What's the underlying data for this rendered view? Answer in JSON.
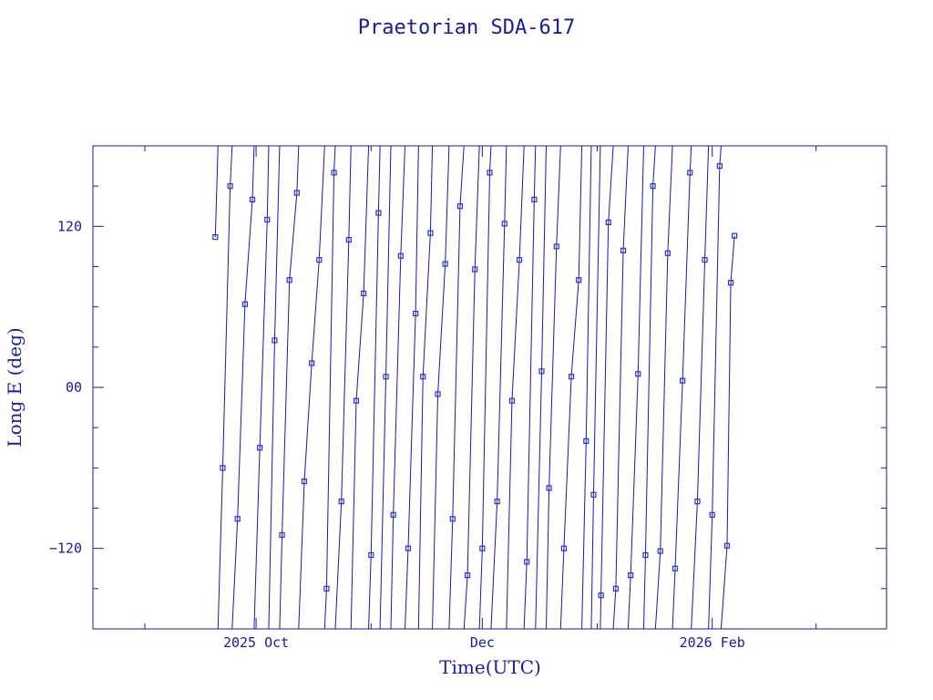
{
  "chart_data": {
    "type": "line",
    "title": "Praetorian SDA-617",
    "xlabel": "Time(UTC)",
    "ylabel": "Long E (deg)",
    "x_axis": {
      "scale": "time",
      "range": [
        "2025-08-18",
        "2026-03-20"
      ],
      "tick_labels": [
        {
          "date": "2025-10-01",
          "label": "2025 Oct"
        },
        {
          "date": "2025-12-01",
          "label": "Dec"
        },
        {
          "date": "2026-02-01",
          "label": "2026 Feb"
        }
      ]
    },
    "y_axis": {
      "range": [
        -180,
        180
      ],
      "tick_labels": [
        {
          "value": 120,
          "label": "120"
        },
        {
          "value": 0,
          "label": "00"
        },
        {
          "value": -120,
          "label": "−120"
        }
      ]
    },
    "grid": false,
    "legend": "none",
    "colors": {
      "line": "#1a1aa6",
      "marker": "#2233dd",
      "frame": "#1a1aa6",
      "text": "#1a1aa6"
    },
    "series": [
      {
        "marker": "square",
        "drift_deg_per_day": 95,
        "wrap": [
          -180,
          180
        ],
        "points": [
          {
            "x": "2025-09-20",
            "y": 112
          },
          {
            "x": "2025-09-22",
            "y": -60
          },
          {
            "x": "2025-09-24",
            "y": 150
          },
          {
            "x": "2025-09-26",
            "y": -98
          },
          {
            "x": "2025-09-28",
            "y": 62
          },
          {
            "x": "2025-09-30",
            "y": 140
          },
          {
            "x": "2025-10-02",
            "y": -45
          },
          {
            "x": "2025-10-04",
            "y": 125
          },
          {
            "x": "2025-10-06",
            "y": 35
          },
          {
            "x": "2025-10-08",
            "y": -110
          },
          {
            "x": "2025-10-10",
            "y": 80
          },
          {
            "x": "2025-10-12",
            "y": 145
          },
          {
            "x": "2025-10-14",
            "y": -70
          },
          {
            "x": "2025-10-16",
            "y": 18
          },
          {
            "x": "2025-10-18",
            "y": 95
          },
          {
            "x": "2025-10-20",
            "y": -150
          },
          {
            "x": "2025-10-22",
            "y": 160
          },
          {
            "x": "2025-10-24",
            "y": -85
          },
          {
            "x": "2025-10-26",
            "y": 110
          },
          {
            "x": "2025-10-28",
            "y": -10
          },
          {
            "x": "2025-10-30",
            "y": 70
          },
          {
            "x": "2025-11-01",
            "y": -125
          },
          {
            "x": "2025-11-03",
            "y": 130
          },
          {
            "x": "2025-11-05",
            "y": 8
          },
          {
            "x": "2025-11-07",
            "y": -95
          },
          {
            "x": "2025-11-09",
            "y": 98
          },
          {
            "x": "2025-11-11",
            "y": -120
          },
          {
            "x": "2025-11-13",
            "y": 55
          },
          {
            "x": "2025-11-15",
            "y": 8
          },
          {
            "x": "2025-11-17",
            "y": 115
          },
          {
            "x": "2025-11-19",
            "y": -5
          },
          {
            "x": "2025-11-21",
            "y": 92
          },
          {
            "x": "2025-11-23",
            "y": -98
          },
          {
            "x": "2025-11-25",
            "y": 135
          },
          {
            "x": "2025-11-27",
            "y": -140
          },
          {
            "x": "2025-11-29",
            "y": 88
          },
          {
            "x": "2025-12-01",
            "y": -120
          },
          {
            "x": "2025-12-03",
            "y": 160
          },
          {
            "x": "2025-12-05",
            "y": -85
          },
          {
            "x": "2025-12-07",
            "y": 122
          },
          {
            "x": "2025-12-09",
            "y": -10
          },
          {
            "x": "2025-12-11",
            "y": 95
          },
          {
            "x": "2025-12-13",
            "y": -130
          },
          {
            "x": "2025-12-15",
            "y": 140
          },
          {
            "x": "2025-12-17",
            "y": 12
          },
          {
            "x": "2025-12-19",
            "y": -75
          },
          {
            "x": "2025-12-21",
            "y": 105
          },
          {
            "x": "2025-12-23",
            "y": -120
          },
          {
            "x": "2025-12-25",
            "y": 8
          },
          {
            "x": "2025-12-27",
            "y": 80
          },
          {
            "x": "2025-12-29",
            "y": -40
          },
          {
            "x": "2025-12-31",
            "y": -80
          },
          {
            "x": "2026-01-02",
            "y": -155
          },
          {
            "x": "2026-01-04",
            "y": 123
          },
          {
            "x": "2026-01-06",
            "y": -150
          },
          {
            "x": "2026-01-08",
            "y": 102
          },
          {
            "x": "2026-01-10",
            "y": -140
          },
          {
            "x": "2026-01-12",
            "y": 10
          },
          {
            "x": "2026-01-14",
            "y": -125
          },
          {
            "x": "2026-01-16",
            "y": 150
          },
          {
            "x": "2026-01-18",
            "y": -122
          },
          {
            "x": "2026-01-20",
            "y": 100
          },
          {
            "x": "2026-01-22",
            "y": -135
          },
          {
            "x": "2026-01-24",
            "y": 5
          },
          {
            "x": "2026-01-26",
            "y": 160
          },
          {
            "x": "2026-01-28",
            "y": -85
          },
          {
            "x": "2026-01-30",
            "y": 95
          },
          {
            "x": "2026-02-01",
            "y": -95
          },
          {
            "x": "2026-02-03",
            "y": 165
          },
          {
            "x": "2026-02-05",
            "y": -118
          },
          {
            "x": "2026-02-06",
            "y": 78
          },
          {
            "x": "2026-02-07",
            "y": 113
          }
        ]
      }
    ]
  }
}
